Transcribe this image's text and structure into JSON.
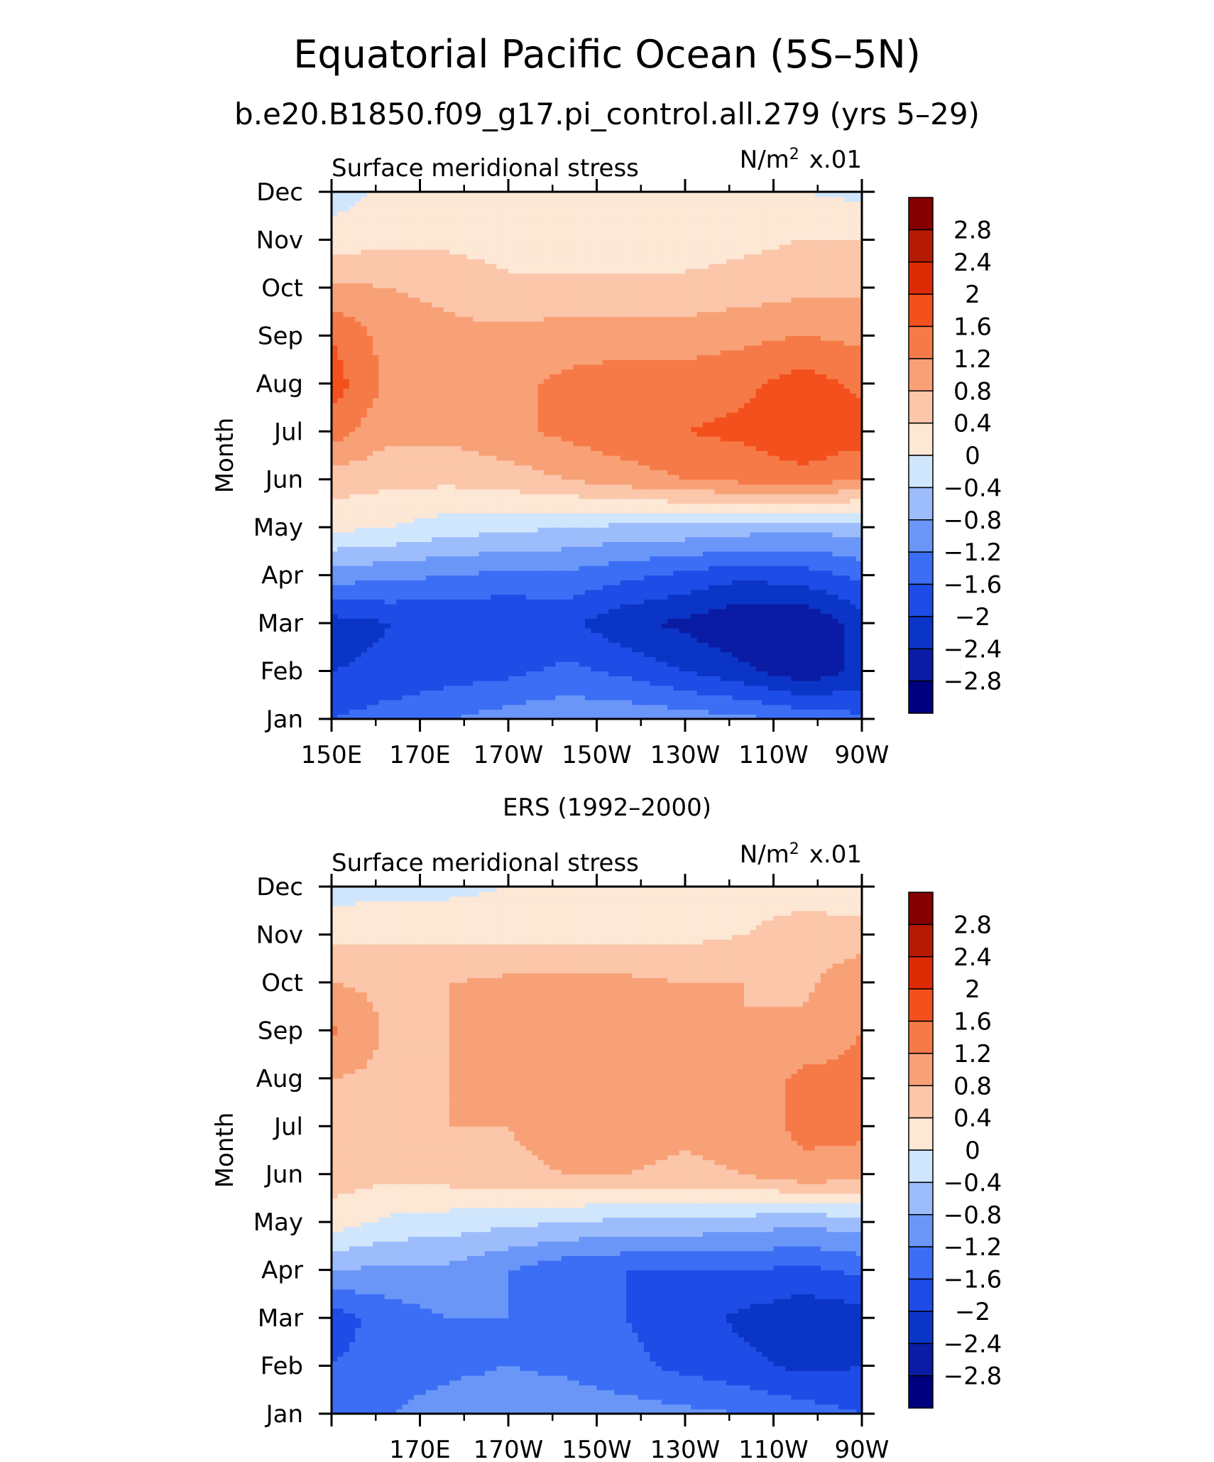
{
  "figure": {
    "title": "Equatorial Pacific Ocean (5S–5N)",
    "subtitle": "b.e20.B1850.f09_g17.pi_control.all.279 (yrs 5–29)"
  },
  "chart_data": [
    {
      "type": "heatmap",
      "panel_title": "",
      "left_label": "Surface meridional stress",
      "units_base": "N/m",
      "units_exp": "2",
      "units_scale": "x.01",
      "ylabel": "Month",
      "x_ticks": [
        "150E",
        "170E",
        "170W",
        "150W",
        "130W",
        "110W",
        "90W"
      ],
      "y_ticks": [
        "Jan",
        "Feb",
        "Mar",
        "Apr",
        "May",
        "Jun",
        "Jul",
        "Aug",
        "Sep",
        "Oct",
        "Nov",
        "Dec"
      ],
      "x_range": [
        "150E",
        "90W"
      ],
      "y_range": [
        "Jan",
        "Dec"
      ],
      "contour_levels": [
        -2.8,
        -2.4,
        -2,
        -1.6,
        -1.2,
        -0.8,
        -0.4,
        0,
        0.4,
        0.8,
        1.2,
        1.6,
        2,
        2.4,
        2.8
      ],
      "colorbar_labels": [
        "2.8",
        "2.4",
        "2",
        "1.6",
        "1.2",
        "0.8",
        "0.4",
        "0",
        "−0.4",
        "−0.8",
        "−1.2",
        "−1.6",
        "−2",
        "−2.4",
        "−2.8"
      ],
      "grid_note": "values x0.01 N/m2; rows Jan..Dec, cols 150E..90W at 10deg",
      "values": [
        [
          -1.6,
          -1.4,
          -1.2,
          -1.0,
          -0.9,
          -0.9,
          -1.0,
          -1.1,
          -1.3,
          -1.5
        ],
        [
          -2.0,
          -1.9,
          -1.8,
          -1.7,
          -1.5,
          -1.7,
          -2.0,
          -2.3,
          -2.7,
          -2.3
        ],
        [
          -2.2,
          -2.0,
          -2.0,
          -2.0,
          -1.9,
          -2.3,
          -2.5,
          -2.8,
          -2.8,
          -2.2
        ],
        [
          -1.0,
          -1.1,
          -1.2,
          -1.3,
          -1.3,
          -1.5,
          -1.7,
          -1.9,
          -1.8,
          -1.5
        ],
        [
          0.1,
          0.0,
          -0.2,
          -0.3,
          -0.4,
          -0.5,
          -0.5,
          -0.6,
          -0.7,
          -0.6
        ],
        [
          0.6,
          0.5,
          0.5,
          0.6,
          0.8,
          1.0,
          1.2,
          1.3,
          1.4,
          1.2
        ],
        [
          1.4,
          0.9,
          0.9,
          1.1,
          1.3,
          1.5,
          1.6,
          1.7,
          2.0,
          1.8
        ],
        [
          1.8,
          1.1,
          1.0,
          1.1,
          1.3,
          1.4,
          1.4,
          1.5,
          1.8,
          1.5
        ],
        [
          1.6,
          1.0,
          0.9,
          0.9,
          1.0,
          1.0,
          1.0,
          1.1,
          1.2,
          1.1
        ],
        [
          0.9,
          0.8,
          0.7,
          0.5,
          0.5,
          0.5,
          0.5,
          0.6,
          0.7,
          0.7
        ],
        [
          0.2,
          0.3,
          0.3,
          0.2,
          0.2,
          0.2,
          0.2,
          0.3,
          0.4,
          0.4
        ],
        [
          -0.2,
          0.1,
          0.1,
          0.1,
          0.0,
          0.1,
          0.1,
          0.1,
          0.0,
          -0.1
        ]
      ]
    },
    {
      "type": "heatmap",
      "panel_title": "ERS (1992–2000)",
      "left_label": "Surface meridional stress",
      "units_base": "N/m",
      "units_exp": "2",
      "units_scale": "x.01",
      "ylabel": "Month",
      "x_ticks": [
        "170E",
        "170W",
        "150W",
        "130W",
        "110W",
        "90W"
      ],
      "y_ticks": [
        "Jan",
        "Feb",
        "Mar",
        "Apr",
        "May",
        "Jun",
        "Jul",
        "Aug",
        "Sep",
        "Oct",
        "Nov",
        "Dec"
      ],
      "x_range": [
        "150E",
        "90W"
      ],
      "y_range": [
        "Jan",
        "Dec"
      ],
      "contour_levels": [
        -2.8,
        -2.4,
        -2,
        -1.6,
        -1.2,
        -0.8,
        -0.4,
        0,
        0.4,
        0.8,
        1.2,
        1.6,
        2,
        2.4,
        2.8
      ],
      "colorbar_labels": [
        "2.8",
        "2.4",
        "2",
        "1.6",
        "1.2",
        "0.8",
        "0.4",
        "0",
        "−0.4",
        "−0.8",
        "−1.2",
        "−1.6",
        "−2",
        "−2.4",
        "−2.8"
      ],
      "values": [
        [
          -1.4,
          -1.2,
          -1.0,
          -0.9,
          -0.9,
          -1.0,
          -1.1,
          -1.2,
          -1.4,
          -1.6
        ],
        [
          -1.6,
          -1.4,
          -1.3,
          -1.2,
          -1.3,
          -1.5,
          -1.7,
          -1.9,
          -2.1,
          -2.0
        ],
        [
          -1.8,
          -1.4,
          -1.2,
          -1.2,
          -1.3,
          -1.6,
          -1.8,
          -2.1,
          -2.3,
          -2.2
        ],
        [
          -0.8,
          -0.9,
          -0.9,
          -1.2,
          -1.5,
          -1.6,
          -1.6,
          -1.6,
          -1.7,
          -1.5
        ],
        [
          0.2,
          -0.1,
          -0.2,
          -0.3,
          -0.4,
          -0.5,
          -0.5,
          -0.6,
          -0.7,
          -0.6
        ],
        [
          0.6,
          0.5,
          0.6,
          0.7,
          0.8,
          0.8,
          0.7,
          0.8,
          1.1,
          1.0
        ],
        [
          0.7,
          0.6,
          0.8,
          0.8,
          1.0,
          1.0,
          0.9,
          1.0,
          1.3,
          1.3
        ],
        [
          0.8,
          0.7,
          0.8,
          1.0,
          1.1,
          1.1,
          1.0,
          0.9,
          1.3,
          1.3
        ],
        [
          1.3,
          0.7,
          0.8,
          1.0,
          1.1,
          1.1,
          1.0,
          0.8,
          0.9,
          1.2
        ],
        [
          0.8,
          0.7,
          0.8,
          0.9,
          0.9,
          0.9,
          0.8,
          0.8,
          0.7,
          1.1
        ],
        [
          0.3,
          0.3,
          0.3,
          0.3,
          0.3,
          0.3,
          0.3,
          0.4,
          0.6,
          0.6
        ],
        [
          -0.2,
          -0.1,
          -0.1,
          0.0,
          0.1,
          0.1,
          0.1,
          0.2,
          0.2,
          0.1
        ]
      ]
    }
  ],
  "colors": {
    "palette": [
      "#00007f",
      "#0a1ca4",
      "#0b35c6",
      "#1e4ce6",
      "#3b6ef4",
      "#6a96f8",
      "#9cbcfb",
      "#d0e6fd",
      "#fde7d5",
      "#fbc6a9",
      "#f8a177",
      "#f67a48",
      "#f3501d",
      "#dc2a05",
      "#b51a03",
      "#850000"
    ]
  }
}
